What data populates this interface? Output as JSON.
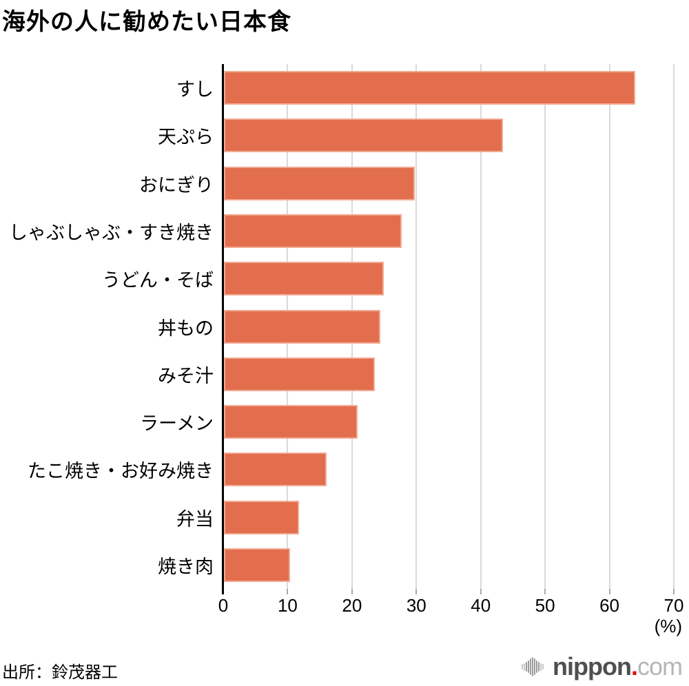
{
  "title": "海外の人に勧めたい日本食",
  "source": "出所：鈴茂器工",
  "logo": {
    "name": "nippon",
    "dot": ".",
    "tld": "com",
    "icon": "soundwave-icon"
  },
  "chart_data": {
    "type": "bar",
    "orientation": "horizontal",
    "title": "海外の人に勧めたい日本食",
    "categories": [
      "すし",
      "天ぷら",
      "おにぎり",
      "しゃぶしゃぶ・すき焼き",
      "うどん・そば",
      "丼もの",
      "みそ汁",
      "ラーメン",
      "たこ焼き・お好み焼き",
      "弁当",
      "焼き肉"
    ],
    "values": [
      63.9,
      43.3,
      29.6,
      27.6,
      24.8,
      24.3,
      23.4,
      20.8,
      16.0,
      11.7,
      10.3
    ],
    "xlabel": "(%)",
    "xlim": [
      0,
      70
    ],
    "xticks": [
      0,
      10,
      20,
      30,
      40,
      50,
      60,
      70
    ],
    "grid": true,
    "bar_color": "#E26E4E",
    "gridline_color": "#d9d9d9",
    "axis_color": "#000000"
  }
}
